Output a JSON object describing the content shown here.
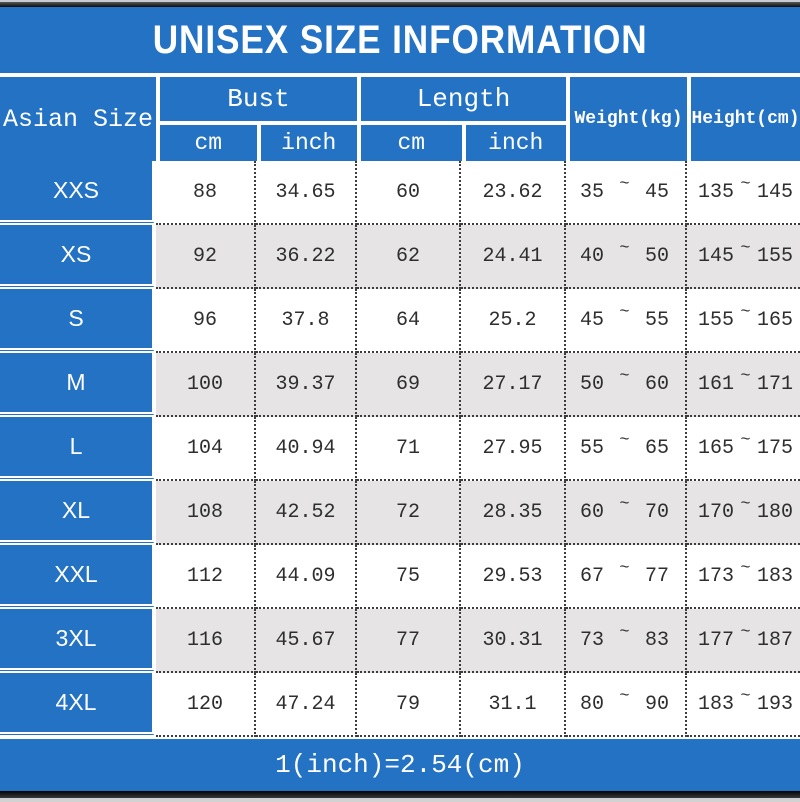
{
  "chart_data": {
    "type": "table",
    "title": "UNISEX SIZE INFORMATION",
    "footnote": "1(inch)=2.54(cm)",
    "range_separator": "~",
    "column_groups": [
      {
        "label": "Asian Size",
        "span": 1
      },
      {
        "label": "Bust",
        "span": 2,
        "subcolumns": [
          "cm",
          "inch"
        ]
      },
      {
        "label": "Length",
        "span": 2,
        "subcolumns": [
          "cm",
          "inch"
        ]
      },
      {
        "label": "Weight(kg)",
        "span": 1
      },
      {
        "label": "Height(cm)",
        "span": 1
      }
    ],
    "rows": [
      {
        "size": "XXS",
        "bust_cm": "88",
        "bust_inch": "34.65",
        "length_cm": "60",
        "length_inch": "23.62",
        "weight_min": "35",
        "weight_max": "45",
        "height_min": "135",
        "height_max": "145"
      },
      {
        "size": "XS",
        "bust_cm": "92",
        "bust_inch": "36.22",
        "length_cm": "62",
        "length_inch": "24.41",
        "weight_min": "40",
        "weight_max": "50",
        "height_min": "145",
        "height_max": "155"
      },
      {
        "size": "S",
        "bust_cm": "96",
        "bust_inch": "37.8",
        "length_cm": "64",
        "length_inch": "25.2",
        "weight_min": "45",
        "weight_max": "55",
        "height_min": "155",
        "height_max": "165"
      },
      {
        "size": "M",
        "bust_cm": "100",
        "bust_inch": "39.37",
        "length_cm": "69",
        "length_inch": "27.17",
        "weight_min": "50",
        "weight_max": "60",
        "height_min": "161",
        "height_max": "171"
      },
      {
        "size": "L",
        "bust_cm": "104",
        "bust_inch": "40.94",
        "length_cm": "71",
        "length_inch": "27.95",
        "weight_min": "55",
        "weight_max": "65",
        "height_min": "165",
        "height_max": "175"
      },
      {
        "size": "XL",
        "bust_cm": "108",
        "bust_inch": "42.52",
        "length_cm": "72",
        "length_inch": "28.35",
        "weight_min": "60",
        "weight_max": "70",
        "height_min": "170",
        "height_max": "180"
      },
      {
        "size": "XXL",
        "bust_cm": "112",
        "bust_inch": "44.09",
        "length_cm": "75",
        "length_inch": "29.53",
        "weight_min": "67",
        "weight_max": "77",
        "height_min": "173",
        "height_max": "183"
      },
      {
        "size": "3XL",
        "bust_cm": "116",
        "bust_inch": "45.67",
        "length_cm": "77",
        "length_inch": "30.31",
        "weight_min": "73",
        "weight_max": "83",
        "height_min": "177",
        "height_max": "187"
      },
      {
        "size": "4XL",
        "bust_cm": "120",
        "bust_inch": "47.24",
        "length_cm": "79",
        "length_inch": "31.1",
        "weight_min": "80",
        "weight_max": "90",
        "height_min": "183",
        "height_max": "193"
      }
    ]
  },
  "colors": {
    "accent_blue": "#2372c4",
    "alt_row_gray": "#e6e4e5",
    "data_text": "#2e2e2e",
    "header_text": "#ffffff"
  }
}
